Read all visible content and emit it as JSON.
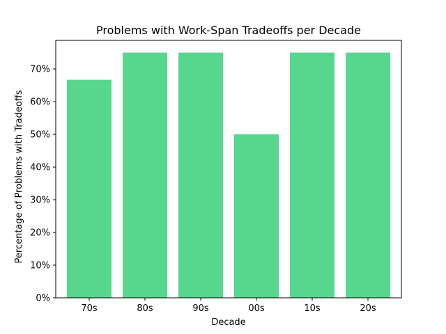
{
  "chart_data": {
    "type": "bar",
    "title": "Problems with Work-Span Tradeoffs per Decade",
    "xlabel": "Decade",
    "ylabel": "Percentage of Problems with Tradeoffs",
    "categories": [
      "70s",
      "80s",
      "90s",
      "00s",
      "10s",
      "20s"
    ],
    "values": [
      0.667,
      0.75,
      0.75,
      0.5,
      0.75,
      0.75
    ],
    "ylim": [
      0,
      0.7875
    ],
    "yticks": [
      0,
      0.1,
      0.2,
      0.3,
      0.4,
      0.5,
      0.6,
      0.7
    ],
    "ytick_labels": [
      "0%",
      "10%",
      "20%",
      "30%",
      "40%",
      "50%",
      "60%",
      "70%"
    ],
    "grid": false,
    "bar_color": "#57d68d"
  }
}
